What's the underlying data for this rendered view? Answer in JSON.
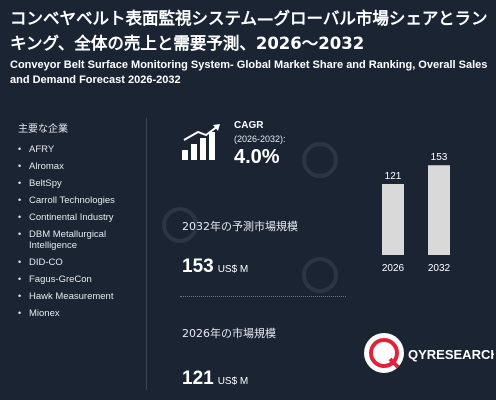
{
  "header": {
    "title_jp": "コンベヤベルト表面監視システム—グローバル市場シェアとランキング、全体の売上と需要予測、2026～2032",
    "title_en": "Conveyor Belt Surface Monitoring System- Global Market Share and Ranking, Overall Sales and Demand Forecast 2026-2032"
  },
  "companies": {
    "label": "主要な企業",
    "items": [
      "AFRY",
      "Alromax",
      "BeltSpy",
      "Carroll Technologies",
      "Continental Industry",
      "DBM Metallurgical Intelligence",
      "DID-CO",
      "Fagus-GreCon",
      "Hawk Measurement",
      "Mionex"
    ]
  },
  "cagr": {
    "label": "CAGR",
    "period": "(2026-2032):",
    "value": "4.0%"
  },
  "forecast": {
    "label": "2032年の予測市場規模",
    "value": "153",
    "unit": "US$ M"
  },
  "market_2026": {
    "label": "2026年の市場規模",
    "value": "121",
    "unit": "US$ M"
  },
  "chart_data": {
    "type": "bar",
    "categories": [
      "2026",
      "2032"
    ],
    "values": [
      121,
      153
    ],
    "title": "",
    "xlabel": "",
    "ylabel": "",
    "ylim": [
      0,
      170
    ]
  },
  "logo": {
    "brand": "QYRESEARCH",
    "colors": {
      "accent": "#e0233a",
      "dark": "#1a2433"
    }
  },
  "colors": {
    "background": "#1a2433",
    "bar": "#d9d9d9",
    "text": "#ffffff"
  },
  "icons": {
    "cagr": "growth-bars-arrow-icon",
    "watermark": "qyresearch-watermark-icon"
  }
}
